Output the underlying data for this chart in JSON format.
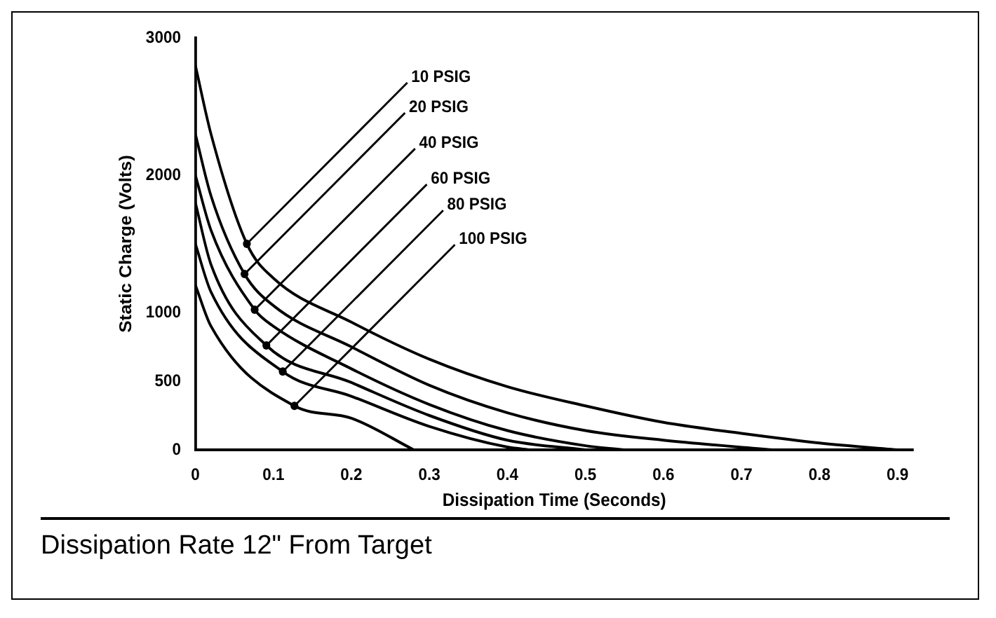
{
  "chart_data": {
    "type": "line",
    "title": "Dissipation Rate 12\" From Target",
    "xlabel": "Dissipation Time (Seconds)",
    "ylabel": "Static Charge (Volts)",
    "xlim": [
      0,
      0.92
    ],
    "xticks": [
      0,
      0.1,
      0.2,
      0.3,
      0.4,
      0.5,
      0.6,
      0.7,
      0.8,
      0.9
    ],
    "ylim": [
      0,
      3000
    ],
    "yticks": [
      0,
      500,
      1000,
      2000,
      3000
    ],
    "grid": false,
    "legend": false,
    "marker": "none",
    "line_style": "solid",
    "series": [
      {
        "color": "#000000",
        "x": [
          0,
          0.02,
          0.066,
          0.1,
          0.2,
          0.3,
          0.4,
          0.5,
          0.6,
          0.7,
          0.8,
          0.9
        ],
        "values": [
          2800,
          2300,
          1500,
          1250,
          930,
          660,
          460,
          320,
          200,
          120,
          50,
          0
        ]
      },
      {
        "color": "#000000",
        "x": [
          0,
          0.02,
          0.063,
          0.1,
          0.2,
          0.3,
          0.4,
          0.5,
          0.6,
          0.74
        ],
        "values": [
          2300,
          1850,
          1280,
          1050,
          750,
          470,
          270,
          140,
          70,
          0
        ]
      },
      {
        "color": "#000000",
        "x": [
          0,
          0.02,
          0.076,
          0.1,
          0.2,
          0.3,
          0.4,
          0.5,
          0.55
        ],
        "values": [
          2000,
          1600,
          1020,
          900,
          590,
          330,
          140,
          30,
          0
        ]
      },
      {
        "color": "#000000",
        "x": [
          0,
          0.02,
          0.091,
          0.2,
          0.3,
          0.4,
          0.5
        ],
        "values": [
          1800,
          1350,
          760,
          490,
          250,
          70,
          0
        ]
      },
      {
        "color": "#000000",
        "x": [
          0,
          0.02,
          0.112,
          0.2,
          0.3,
          0.4,
          0.43
        ],
        "values": [
          1500,
          1150,
          570,
          390,
          170,
          20,
          0
        ]
      },
      {
        "color": "#000000",
        "x": [
          0,
          0.02,
          0.127,
          0.2,
          0.28
        ],
        "values": [
          1200,
          900,
          320,
          230,
          0
        ]
      }
    ],
    "annotations": [
      {
        "text": "10 PSIG",
        "x": 0.066,
        "y": 1500
      },
      {
        "text": "20 PSIG",
        "x": 0.063,
        "y": 1280
      },
      {
        "text": "40 PSIG",
        "x": 0.076,
        "y": 1020
      },
      {
        "text": "60 PSIG",
        "x": 0.091,
        "y": 760
      },
      {
        "text": "80 PSIG",
        "x": 0.112,
        "y": 570
      },
      {
        "text": "100 PSIG",
        "x": 0.127,
        "y": 320
      }
    ]
  }
}
